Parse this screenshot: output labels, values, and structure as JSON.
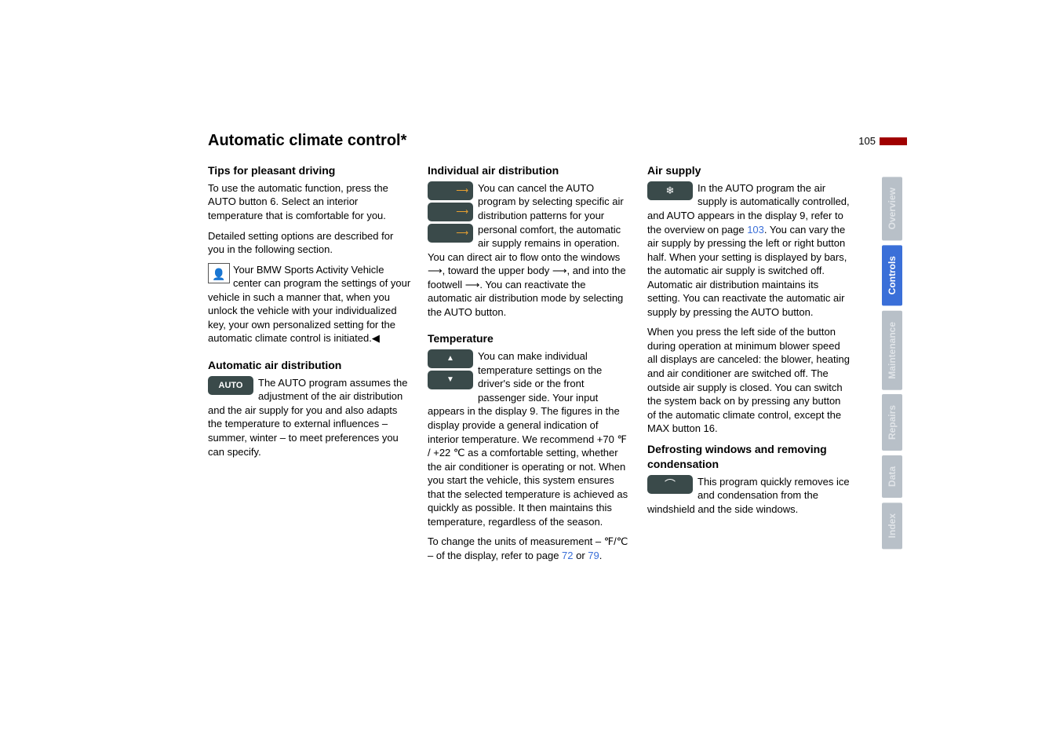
{
  "page": {
    "title": "Automatic climate control*",
    "number": "105"
  },
  "col1": {
    "h1": "Tips for pleasant driving",
    "p1": "To use the automatic function, press the AUTO button 6. Select an interior temperature that is comfortable for you.",
    "p2": "Detailed setting options are described for you in the following section.",
    "p3": "Your BMW Sports Activity Vehicle center can program the settings of your vehicle in such a manner that, when you unlock the vehicle with your individualized key, your own personalized setting for the automatic climate control is initiated.◀",
    "h2": "Automatic air distribution",
    "p4": "The AUTO program assumes the adjustment of the air distribution and the air supply for you and also adapts the temperature to external influences – summer, winter – to meet preferences you can specify.",
    "auto_label": "AUTO"
  },
  "col2": {
    "h1": "Individual air distribution",
    "p1": "You can cancel the AUTO program by selecting specific air distribution patterns for your personal comfort, the automatic air supply remains in operation. You can direct air to flow onto the windows ⟶, toward the upper body ⟶, and into the footwell ⟶. You can reactivate the automatic air distribution mode by selecting the AUTO button.",
    "h2": "Temperature",
    "p2a": "You can make individual temperature settings on the driver's side or the front passenger side. Your input appears in the display 9. The figures in the display provide a general indication of interior temperature. We recommend +70 ℉ / +22 ℃ as a comfortable setting, whether the air conditioner is operating or not. When you start the vehicle, this system ensures that the selected temperature is achieved as quickly as possible. It then maintains this temperature, regardless of the season.",
    "p3a": "To change the units of measurement – ℉/℃ – of the display, refer to page ",
    "link1": "72",
    "p3b": " or ",
    "link2": "79",
    "p3c": "."
  },
  "col3": {
    "h1": "Air supply",
    "p1a": "In the AUTO program the air supply is automatically controlled, and AUTO appears in the display 9, refer to the overview on page ",
    "link1": "103",
    "p1b": ". You can vary the air supply by pressing the left or right button half. When your setting is displayed by bars, the automatic air supply is switched off. Automatic air distribution maintains its setting. You can reactivate the automatic air supply by pressing the AUTO button.",
    "p2": "When you press the left side of the button during operation at minimum blower speed all displays are canceled: the blower, heating and air conditioner are switched off. The outside air supply is closed. You can switch the system back on by pressing any button of the automatic climate control, except the MAX button 16.",
    "h2": "Defrosting windows and removing condensation",
    "p3": "This program quickly removes ice and condensation from the windshield and the side windows."
  },
  "tabs": {
    "t1": "Overview",
    "t2": "Controls",
    "t3": "Maintenance",
    "t4": "Repairs",
    "t5": "Data",
    "t6": "Index"
  },
  "colors": {
    "accent_red": "#a00000",
    "tab_active": "#3a6fd8",
    "tab_inactive": "#b8c0c8",
    "icon_bg": "#3a4a4a",
    "link": "#3a6fd8"
  }
}
